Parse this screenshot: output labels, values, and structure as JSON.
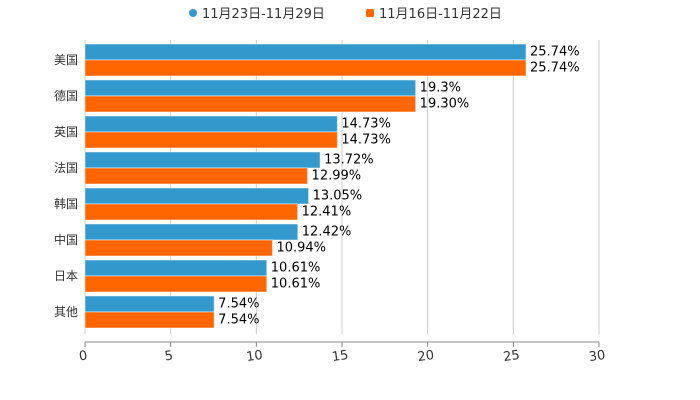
{
  "chart_data": {
    "type": "bar",
    "orientation": "horizontal",
    "categories": [
      "美国",
      "德国",
      "英国",
      "法国",
      "韩国",
      "中国",
      "日本",
      "其他"
    ],
    "series": [
      {
        "name": "11月23日-11月29日",
        "color": "#3399cc",
        "values": [
          25.74,
          19.3,
          14.73,
          13.72,
          13.05,
          12.42,
          10.61,
          7.54
        ],
        "labels": [
          "25.74%",
          "19.3%",
          "14.73%",
          "13.72%",
          "13.05%",
          "12.42%",
          "10.61%",
          "7.54%"
        ]
      },
      {
        "name": "11月16日-11月22日",
        "color": "#ff6600",
        "values": [
          25.74,
          19.3,
          14.73,
          12.99,
          12.41,
          10.94,
          10.61,
          7.54
        ],
        "labels": [
          "25.74%",
          "19.30%",
          "14.73%",
          "12.99%",
          "12.41%",
          "10.94%",
          "10.61%",
          "7.54%"
        ]
      }
    ],
    "xlim": [
      0,
      30
    ],
    "xticks": [
      "0",
      "5",
      "10",
      "15",
      "20",
      "25",
      "30"
    ],
    "grid": true,
    "legend": "top-center",
    "title": "",
    "xlabel": "",
    "ylabel": ""
  }
}
